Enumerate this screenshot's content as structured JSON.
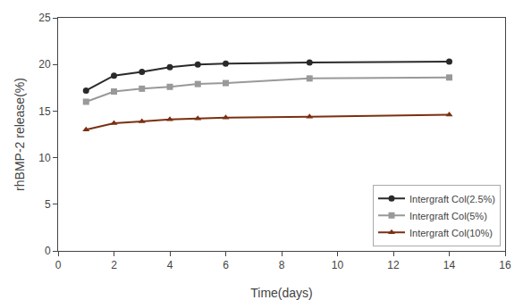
{
  "chart_data": {
    "type": "line",
    "xlabel": "Time(days)",
    "ylabel": "rhBMP-2 release(%)",
    "x": [
      1,
      2,
      3,
      4,
      5,
      6,
      9,
      14
    ],
    "series": [
      {
        "name": "Intergraft Col(2.5%)",
        "color": "#2a2a2a",
        "marker": "circle",
        "values": [
          17.2,
          18.8,
          19.2,
          19.7,
          20.0,
          20.1,
          20.2,
          20.3
        ]
      },
      {
        "name": "Intergraft Col(5%)",
        "color": "#999999",
        "marker": "square",
        "values": [
          16.0,
          17.1,
          17.4,
          17.6,
          17.9,
          18.0,
          18.5,
          18.6
        ]
      },
      {
        "name": "Intergraft Col(10%)",
        "color": "#7a3010",
        "marker": "triangle",
        "values": [
          13.0,
          13.7,
          13.9,
          14.1,
          14.2,
          14.3,
          14.4,
          14.6
        ]
      }
    ],
    "xlim": [
      0,
      16
    ],
    "ylim": [
      0,
      25
    ],
    "xticks": [
      0,
      2,
      4,
      6,
      8,
      10,
      12,
      14,
      16
    ],
    "yticks": [
      0,
      5,
      10,
      15,
      20,
      25
    ],
    "grid": false,
    "legend": "lower right"
  }
}
